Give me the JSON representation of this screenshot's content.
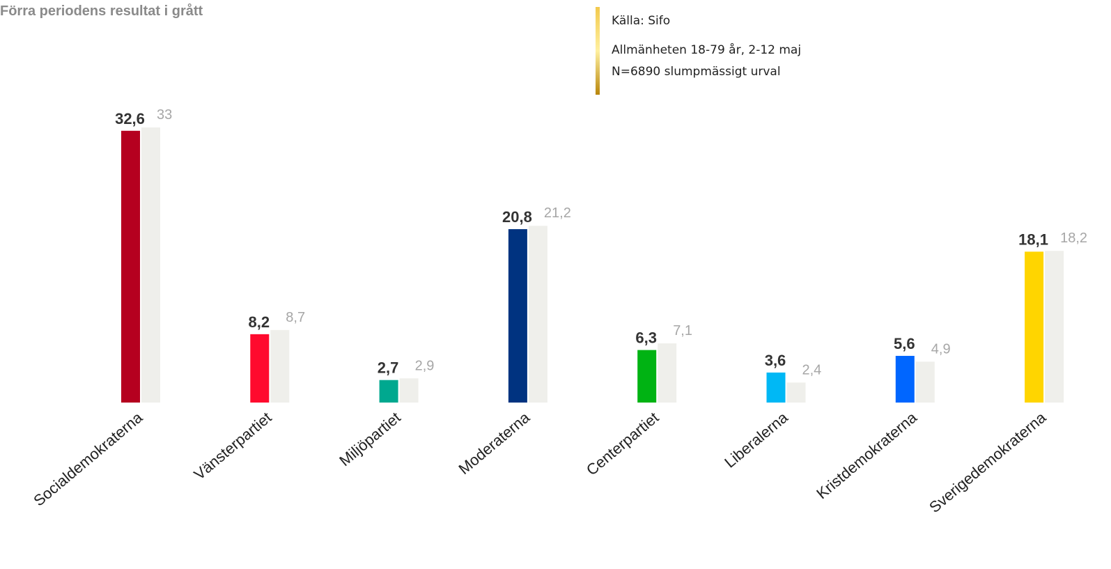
{
  "chart_data": {
    "type": "bar",
    "subtitle": "Förra periodens resultat i grått",
    "source": [
      "Källa: Sifo",
      "Allmänheten 18-79 år, 2-12 maj",
      "N=6890 slumpmässigt urval"
    ],
    "categories": [
      "Socialdemokraterna",
      "Vänsterpartiet",
      "Miljöpartiet",
      "Moderaterna",
      "Centerpartiet",
      "Liberalerna",
      "Kristdemokraterna",
      "Sverigedemokraterna"
    ],
    "series": [
      {
        "colors": [
          "#b5001f",
          "#ff0a2e",
          "#00a88f",
          "#003380",
          "#00b313",
          "#00b8f5",
          "#0066ff",
          "#ffd500"
        ],
        "values": [
          32.6,
          8.2,
          2.7,
          20.8,
          6.3,
          3.6,
          5.6,
          18.1
        ],
        "value_labels": [
          "32,6",
          "8,2",
          "2,7",
          "20,8",
          "6,3",
          "3,6",
          "5,6",
          "18,1"
        ]
      },
      {
        "color": "#efefeb",
        "values": [
          33,
          8.7,
          2.9,
          21.2,
          7.1,
          2.4,
          4.9,
          18.2
        ],
        "value_labels": [
          "33",
          "8,7",
          "2,9",
          "21,2",
          "7,1",
          "2,4",
          "4,9",
          "18,2"
        ]
      }
    ]
  }
}
